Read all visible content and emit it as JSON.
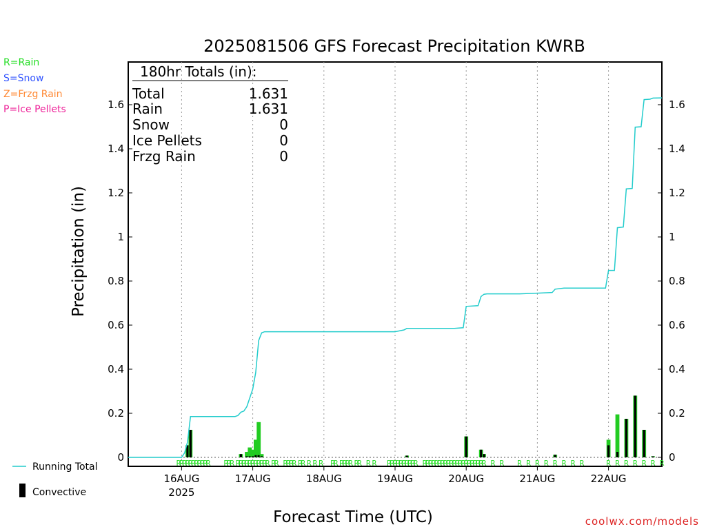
{
  "chart_data": {
    "type": "bar",
    "title": "2025081506 GFS Forecast Precipitation KWRB",
    "xlabel": "Forecast Time (UTC)",
    "ylabel": "Precipitation (in)",
    "ylim": [
      0,
      1.8
    ],
    "yticks": [
      "0",
      "0.2",
      "0.4",
      "0.6",
      "0.8",
      "1",
      "1.2",
      "1.4",
      "1.6"
    ],
    "xlim_hours": [
      0,
      180
    ],
    "day_ticks": [
      {
        "hour": 18,
        "label": "16AUG",
        "sub": "2025"
      },
      {
        "hour": 42,
        "label": "17AUG",
        "sub": ""
      },
      {
        "hour": 66,
        "label": "18AUG",
        "sub": ""
      },
      {
        "hour": 90,
        "label": "19AUG",
        "sub": ""
      },
      {
        "hour": 114,
        "label": "20AUG",
        "sub": ""
      },
      {
        "hour": 138,
        "label": "21AUG",
        "sub": ""
      },
      {
        "hour": 162,
        "label": "22AUG",
        "sub": ""
      }
    ],
    "grid": "vertical dotted at days",
    "ptype_legend": [
      {
        "label": "R=Rain",
        "color": "#22dd22"
      },
      {
        "label": "S=Snow",
        "color": "#3355ff"
      },
      {
        "label": "Z=Frzg Rain",
        "color": "#ff8833"
      },
      {
        "label": "P=Ice Pellets",
        "color": "#ee2299"
      }
    ],
    "series_legend": [
      {
        "label": "Running Total",
        "color": "#22cccc"
      },
      {
        "label": "Convective",
        "color": "#000000"
      }
    ],
    "totals": {
      "heading": "180hr Totals (in):",
      "rows": [
        {
          "name": "Total",
          "value": "1.631"
        },
        {
          "name": "Rain",
          "value": "1.631"
        },
        {
          "name": "Snow",
          "value": "0"
        },
        {
          "name": "Ice Pellets",
          "value": "0"
        },
        {
          "name": "Frzg Rain",
          "value": "0"
        }
      ]
    },
    "bars": [
      {
        "hour": 20,
        "total": 0.055,
        "conv": 0.055
      },
      {
        "hour": 21,
        "total": 0.125,
        "conv": 0.125
      },
      {
        "hour": 38,
        "total": 0.015,
        "conv": 0.015
      },
      {
        "hour": 40,
        "total": 0.025,
        "conv": 0.005
      },
      {
        "hour": 41,
        "total": 0.045,
        "conv": 0.005
      },
      {
        "hour": 42,
        "total": 0.035,
        "conv": 0.005
      },
      {
        "hour": 43,
        "total": 0.08,
        "conv": 0.01
      },
      {
        "hour": 44,
        "total": 0.16,
        "conv": 0.01
      },
      {
        "hour": 45,
        "total": 0.015,
        "conv": 0.005
      },
      {
        "hour": 94,
        "total": 0.008,
        "conv": 0.008
      },
      {
        "hour": 114,
        "total": 0.095,
        "conv": 0.095
      },
      {
        "hour": 119,
        "total": 0.035,
        "conv": 0.035
      },
      {
        "hour": 120,
        "total": 0.015,
        "conv": 0.015
      },
      {
        "hour": 144,
        "total": 0.012,
        "conv": 0.012
      },
      {
        "hour": 162,
        "total": 0.08,
        "conv": 0.055
      },
      {
        "hour": 165,
        "total": 0.195,
        "conv": 0.025
      },
      {
        "hour": 168,
        "total": 0.175,
        "conv": 0.175
      },
      {
        "hour": 171,
        "total": 0.28,
        "conv": 0.28
      },
      {
        "hour": 174,
        "total": 0.125,
        "conv": 0.125
      },
      {
        "hour": 177,
        "total": 0.005,
        "conv": 0.005
      }
    ],
    "running_total": [
      [
        0,
        0
      ],
      [
        18,
        0
      ],
      [
        19,
        0.02
      ],
      [
        20,
        0.07
      ],
      [
        21,
        0.185
      ],
      [
        36,
        0.185
      ],
      [
        37,
        0.19
      ],
      [
        38,
        0.205
      ],
      [
        39,
        0.21
      ],
      [
        40,
        0.23
      ],
      [
        41,
        0.27
      ],
      [
        42,
        0.31
      ],
      [
        43,
        0.385
      ],
      [
        44,
        0.53
      ],
      [
        45,
        0.565
      ],
      [
        46,
        0.57
      ],
      [
        66,
        0.57
      ],
      [
        78,
        0.57
      ],
      [
        90,
        0.57
      ],
      [
        93,
        0.578
      ],
      [
        94,
        0.585
      ],
      [
        110,
        0.585
      ],
      [
        113,
        0.588
      ],
      [
        114,
        0.685
      ],
      [
        118,
        0.688
      ],
      [
        119,
        0.73
      ],
      [
        120,
        0.74
      ],
      [
        121,
        0.742
      ],
      [
        132,
        0.742
      ],
      [
        138,
        0.745
      ],
      [
        143,
        0.748
      ],
      [
        144,
        0.763
      ],
      [
        147,
        0.768
      ],
      [
        161,
        0.768
      ],
      [
        162,
        0.848
      ],
      [
        164,
        0.848
      ],
      [
        165,
        1.042
      ],
      [
        167,
        1.045
      ],
      [
        168,
        1.218
      ],
      [
        170,
        1.22
      ],
      [
        171,
        1.498
      ],
      [
        173,
        1.5
      ],
      [
        174,
        1.623
      ],
      [
        176,
        1.625
      ],
      [
        177,
        1.63
      ],
      [
        180,
        1.631
      ]
    ],
    "rain_marker_hours": [
      17,
      18,
      19,
      20,
      21,
      22,
      23,
      24,
      25,
      26,
      27,
      33,
      34,
      35,
      37,
      38,
      39,
      40,
      41,
      42,
      43,
      44,
      45,
      46,
      47,
      49,
      50,
      53,
      54,
      55,
      56,
      58,
      59,
      61,
      63,
      65,
      69,
      70,
      72,
      73,
      74,
      75,
      77,
      78,
      81,
      83,
      88,
      89,
      90,
      91,
      92,
      93,
      94,
      95,
      96,
      97,
      100,
      101,
      102,
      103,
      104,
      105,
      106,
      107,
      108,
      109,
      110,
      111,
      112,
      113,
      114,
      115,
      116,
      117,
      118,
      119,
      120,
      123,
      126,
      132,
      135,
      138,
      141,
      144,
      147,
      150,
      153,
      162,
      165,
      168,
      171,
      174,
      177,
      180
    ],
    "rain_marker_label": "R"
  },
  "credit": "coolwx.com/models"
}
